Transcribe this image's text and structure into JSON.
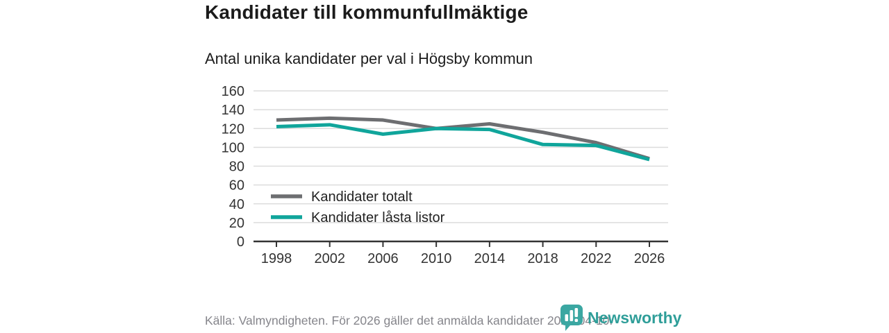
{
  "header": {
    "title": "Kandidater till kommunfullmäktige",
    "subtitle": "Antal unika kandidater per val i Högsby kommun"
  },
  "chart_data": {
    "type": "line",
    "categories": [
      "1998",
      "2002",
      "2006",
      "2010",
      "2014",
      "2018",
      "2022",
      "2026"
    ],
    "series": [
      {
        "name": "Kandidater totalt",
        "color": "#6d6e71",
        "values": [
          129,
          131,
          129,
          120,
          125,
          116,
          105,
          88
        ]
      },
      {
        "name": "Kandidater låsta listor",
        "color": "#10a59b",
        "values": [
          122,
          124,
          114,
          120,
          119,
          103,
          102,
          87
        ]
      }
    ],
    "title": "",
    "xlabel": "",
    "ylabel": "",
    "ylim": [
      0,
      160
    ],
    "yticks": [
      0,
      20,
      40,
      60,
      80,
      100,
      120,
      140,
      160
    ],
    "grid": true,
    "grid_color": "#dcdcdc",
    "axis_color": "#333333",
    "tick_label_color": "#333333",
    "legend_position": "inside-bottom-left",
    "legend_text_color": "#222222"
  },
  "footer": {
    "source_note": "Källa: Valmyndigheten. För 2026 gäller det anmälda kandidater 2026-04-10."
  },
  "branding": {
    "logo_text": "Newsworthy",
    "logo_icon": "speech-bubble-bar-chart-icon",
    "logo_color": "#2f9e99",
    "logo_icon_color": "#3ba7a2"
  }
}
